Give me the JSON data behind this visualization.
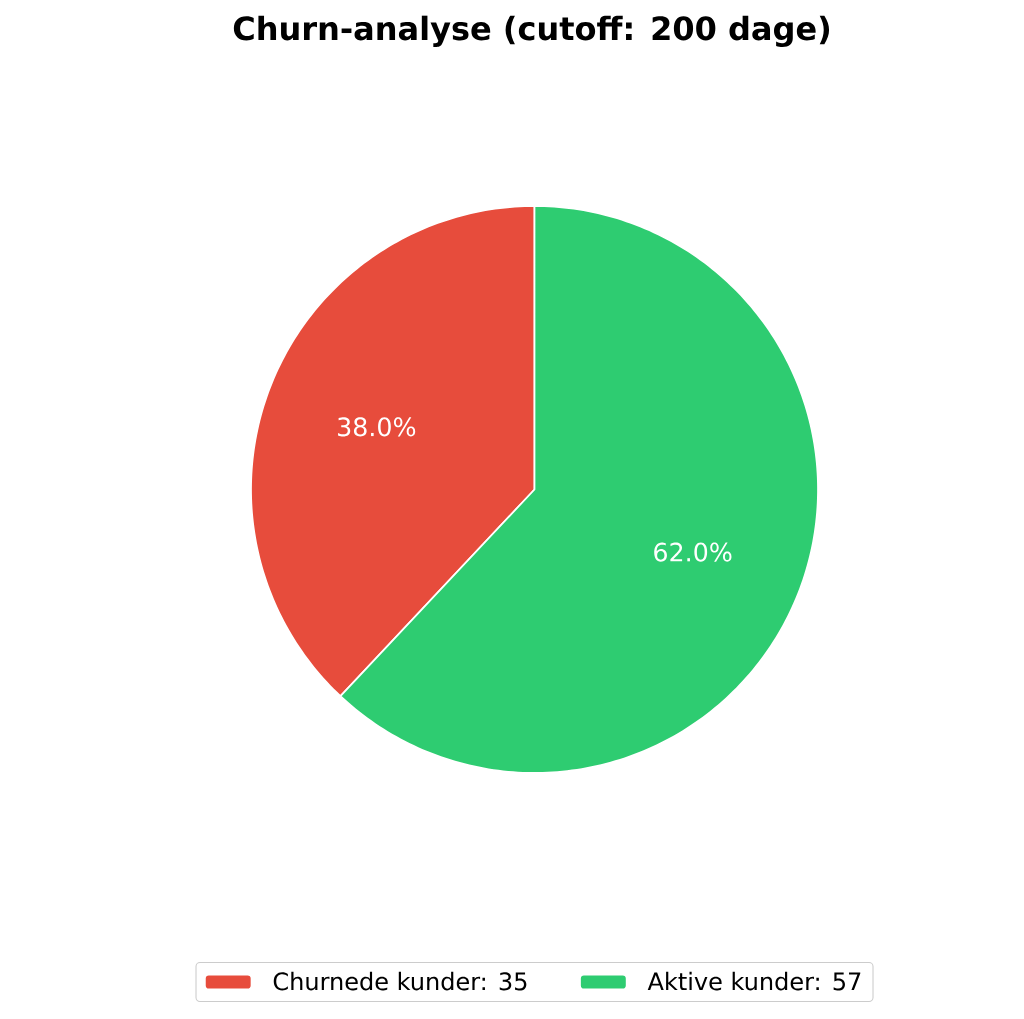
{
  "chart_data": {
    "type": "pie",
    "title": "Churn-analyse (cutoff: 200 dage)",
    "categories": [
      "Churnede kunder: 35",
      "Aktive kunder: 57"
    ],
    "values": [
      38.0,
      62.0
    ],
    "colors": [
      "#e74c3c",
      "#2ecc71"
    ],
    "value_labels": [
      "38.0%",
      "62.0%"
    ],
    "legend": "bottom"
  }
}
